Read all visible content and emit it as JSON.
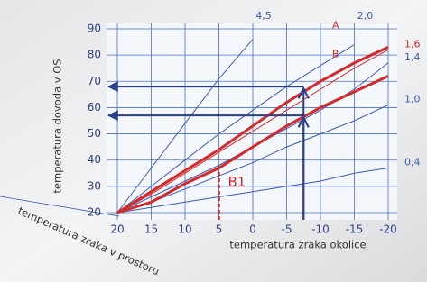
{
  "chart_data": {
    "type": "line",
    "x_label": "temperatura zraka okolice",
    "y_label": "temperatura dovoda v OS",
    "room_axis_label": "temperatura zraka v prostoru",
    "x": [
      20,
      15,
      10,
      5,
      0,
      -5,
      -10,
      -15,
      -20
    ],
    "xlim": [
      20,
      -20
    ],
    "xticks": [
      20,
      15,
      10,
      5,
      0,
      -5,
      -10,
      -15,
      -20
    ],
    "ylim": [
      20,
      90
    ],
    "yticks": [
      20,
      30,
      40,
      50,
      60,
      70,
      80,
      90
    ],
    "grid": true,
    "series": [
      {
        "name": "4,5",
        "color": "#3b5bb5",
        "width": 1,
        "values": [
          20,
          37,
          54,
          71,
          86,
          null,
          null,
          null,
          null
        ]
      },
      {
        "name": "2,0",
        "color": "#3b5bb5",
        "width": 1,
        "values": [
          20,
          30,
          40,
          50,
          59,
          68,
          76,
          84,
          null
        ]
      },
      {
        "name": "1,6",
        "color": "#d42a2a",
        "width": 1,
        "values": [
          20,
          27,
          35,
          43,
          51,
          59,
          67,
          75,
          82
        ]
      },
      {
        "name": "1,4",
        "color": "#3b5bb5",
        "width": 1,
        "values": [
          20,
          26,
          32,
          38,
          45,
          52,
          59,
          67,
          77
        ]
      },
      {
        "name": "1,0",
        "color": "#3b5bb5",
        "width": 1,
        "values": [
          20,
          24,
          29,
          34,
          39,
          45,
          50,
          55,
          61
        ]
      },
      {
        "name": "0,4",
        "color": "#3b5bb5",
        "width": 1,
        "values": [
          20,
          22,
          24,
          26,
          28,
          30,
          32,
          35,
          37
        ]
      },
      {
        "name": "A",
        "color": "#d42a2a",
        "width": 3,
        "values": [
          20,
          28,
          36,
          44,
          53,
          62,
          70,
          77,
          83
        ]
      },
      {
        "name": "B",
        "color": "#d42a2a",
        "width": 3,
        "values": [
          20,
          24,
          31,
          37,
          45,
          53,
          60,
          66,
          72
        ]
      }
    ],
    "arrows": [
      {
        "x": -7.5,
        "y": 68
      },
      {
        "x": -7.5,
        "y": 57
      }
    ],
    "markers": [
      {
        "text": "B1",
        "x": 5,
        "y": 37,
        "color": "#d42a2a"
      }
    ]
  }
}
